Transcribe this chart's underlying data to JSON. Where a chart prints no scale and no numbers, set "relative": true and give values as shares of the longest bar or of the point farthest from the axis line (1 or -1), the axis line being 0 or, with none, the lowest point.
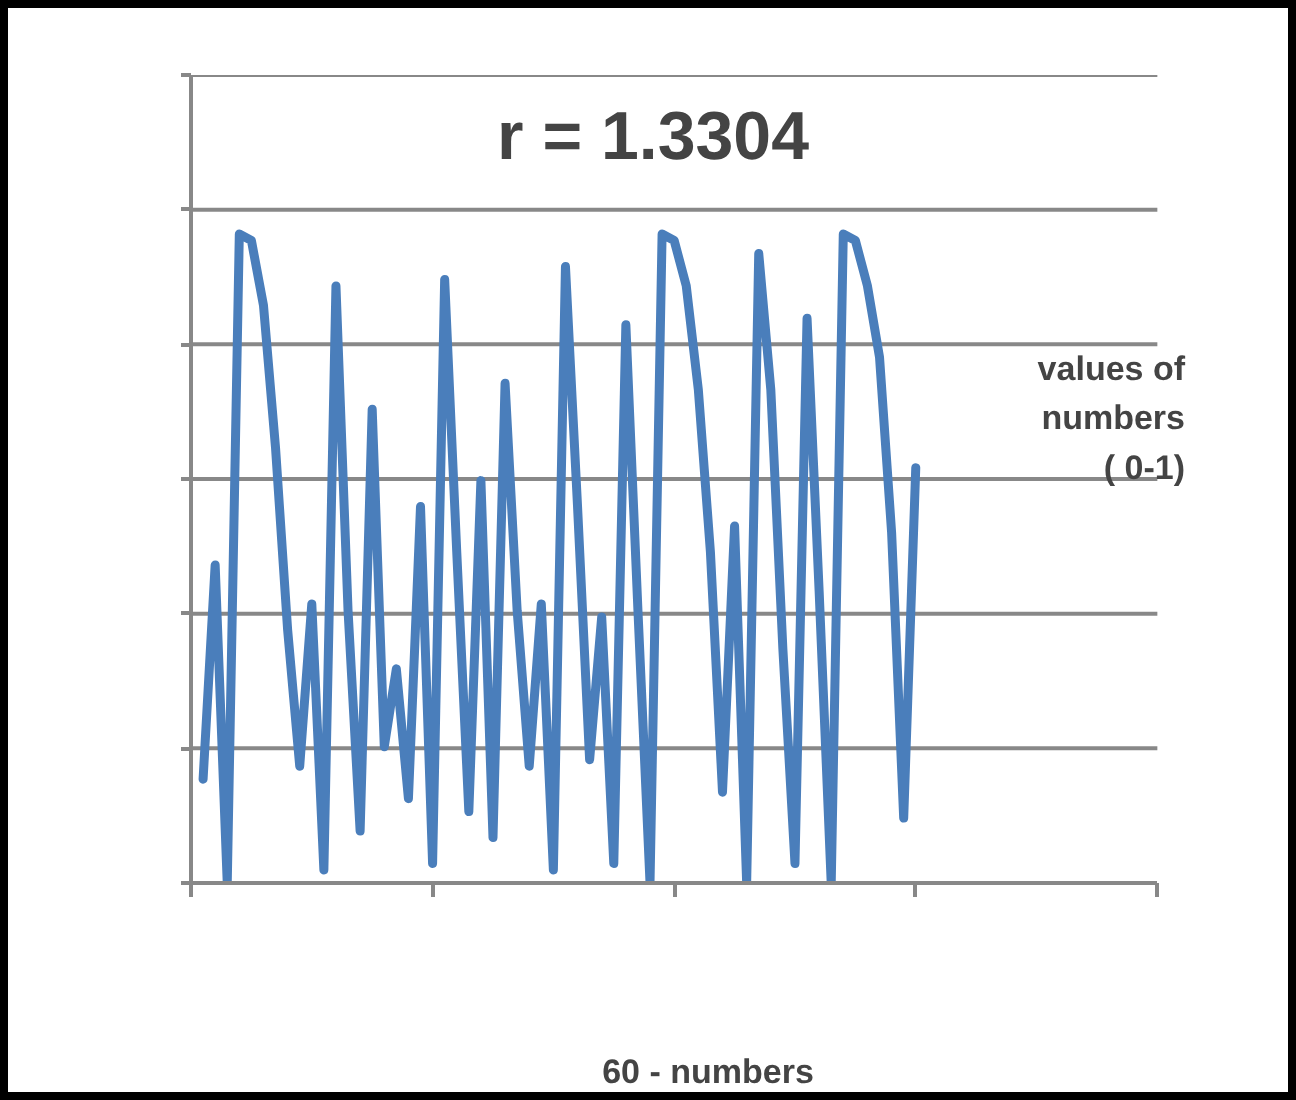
{
  "chart_data": {
    "type": "line",
    "title": "r = 1.3304",
    "xlabel": "60 - numbers",
    "ylabel": "values of\nnumbers\n( 0-1)",
    "categories": [
      null,
      null,
      null,
      null,
      null,
      null,
      null,
      null,
      null,
      null,
      null,
      null,
      null,
      null,
      null,
      null,
      null,
      null,
      null,
      null,
      null,
      null,
      null,
      null,
      null,
      null,
      null,
      null,
      null,
      null,
      null,
      null,
      null,
      null,
      null,
      null,
      null,
      null,
      null,
      null,
      null,
      null,
      null,
      null,
      null,
      null,
      null,
      null,
      null,
      null,
      null,
      null,
      null,
      null,
      null,
      null,
      null,
      null,
      null,
      null
    ],
    "relative": true,
    "grid": "y",
    "marker": "none",
    "line_style": "solid",
    "series": [
      {
        "color": "#4a7ebb",
        "values": [
          0.16,
          0.49,
          0,
          1,
          0.99,
          0.89,
          0.67,
          0.39,
          0.18,
          0.43,
          0.02,
          0.92,
          0.42,
          0.08,
          0.73,
          0.21,
          0.33,
          0.13,
          0.58,
          0.03,
          0.93,
          0.51,
          0.11,
          0.62,
          0.07,
          0.77,
          0.42,
          0.18,
          0.43,
          0.02,
          0.95,
          0.58,
          0.19,
          0.41,
          0.03,
          0.86,
          0.42,
          0,
          1,
          0.99,
          0.92,
          0.76,
          0.51,
          0.14,
          0.55,
          0,
          0.97,
          0.76,
          0.36,
          0.03,
          0.87,
          0.45,
          0,
          1,
          0.99,
          0.92,
          0.81,
          0.54,
          0.1,
          0.64
        ]
      }
    ]
  }
}
